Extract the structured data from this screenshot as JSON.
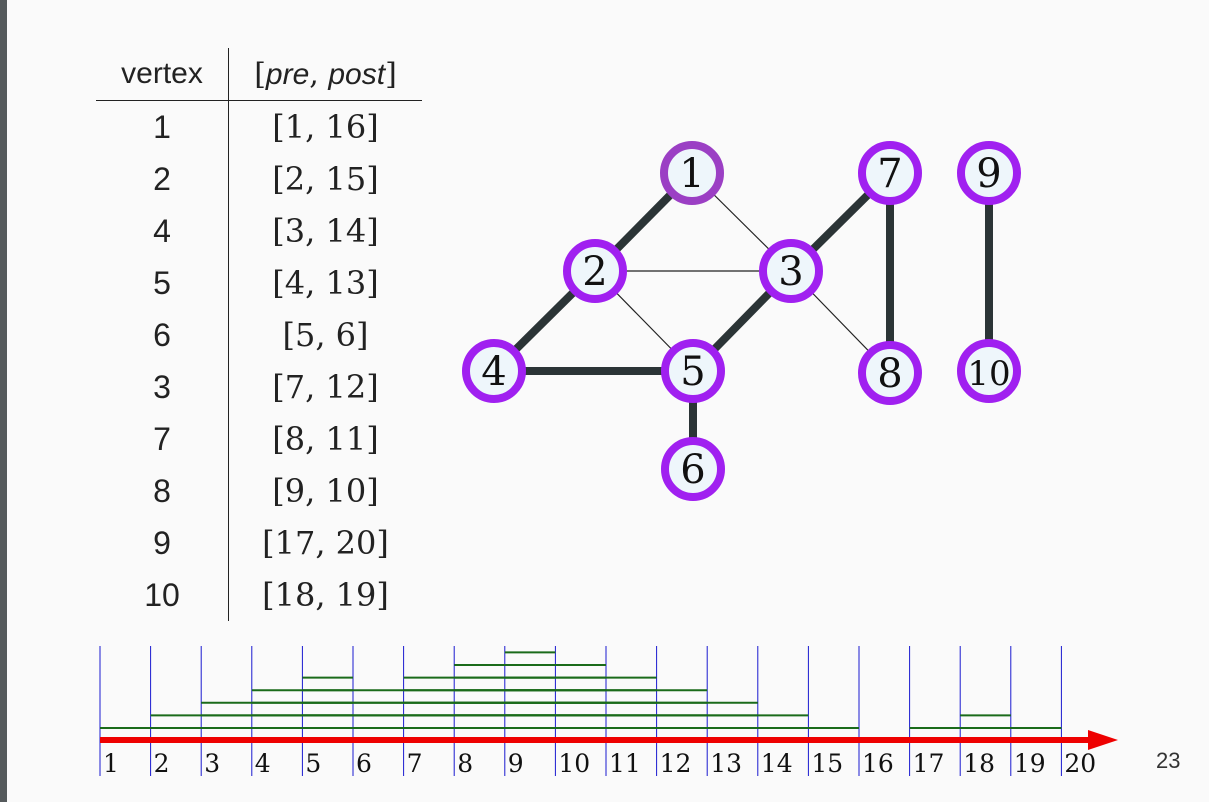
{
  "table": {
    "headers": {
      "vertex": "vertex",
      "interval_open": "[",
      "pre": "pre",
      "sep": ", ",
      "post": "post",
      "interval_close": "]"
    },
    "rows": [
      {
        "vertex": "1",
        "interval": "[1, 16]"
      },
      {
        "vertex": "2",
        "interval": "[2, 15]"
      },
      {
        "vertex": "4",
        "interval": "[3, 14]"
      },
      {
        "vertex": "5",
        "interval": "[4, 13]"
      },
      {
        "vertex": "6",
        "interval": "[5, 6]"
      },
      {
        "vertex": "3",
        "interval": "[7, 12]"
      },
      {
        "vertex": "7",
        "interval": "[8, 11]"
      },
      {
        "vertex": "8",
        "interval": "[9, 10]"
      },
      {
        "vertex": "9",
        "interval": "[17, 20]"
      },
      {
        "vertex": "10",
        "interval": "[18, 19]"
      }
    ]
  },
  "graph": {
    "nodes": [
      {
        "id": "1",
        "label": "1",
        "ring": "#9b3fc4"
      },
      {
        "id": "2",
        "label": "2",
        "ring": "#a020f0"
      },
      {
        "id": "3",
        "label": "3",
        "ring": "#a020f0"
      },
      {
        "id": "4",
        "label": "4",
        "ring": "#a020f0"
      },
      {
        "id": "5",
        "label": "5",
        "ring": "#a020f0"
      },
      {
        "id": "6",
        "label": "6",
        "ring": "#a020f0"
      },
      {
        "id": "7",
        "label": "7",
        "ring": "#a020f0"
      },
      {
        "id": "8",
        "label": "8",
        "ring": "#a020f0"
      },
      {
        "id": "9",
        "label": "9",
        "ring": "#a020f0"
      },
      {
        "id": "10",
        "label": "10",
        "ring": "#a020f0"
      }
    ],
    "edges": [
      {
        "from": "1",
        "to": "2",
        "tree": true
      },
      {
        "from": "1",
        "to": "3",
        "tree": false
      },
      {
        "from": "2",
        "to": "3",
        "tree": false
      },
      {
        "from": "2",
        "to": "4",
        "tree": true
      },
      {
        "from": "2",
        "to": "5",
        "tree": false
      },
      {
        "from": "4",
        "to": "5",
        "tree": true
      },
      {
        "from": "5",
        "to": "3",
        "tree": true
      },
      {
        "from": "5",
        "to": "6",
        "tree": true
      },
      {
        "from": "3",
        "to": "7",
        "tree": true
      },
      {
        "from": "3",
        "to": "8",
        "tree": false
      },
      {
        "from": "7",
        "to": "8",
        "tree": true
      },
      {
        "from": "9",
        "to": "10",
        "tree": true
      }
    ],
    "colors": {
      "tree_edge": "#2b3436",
      "other_edge": "#222222",
      "node_fill": "#eef6fb"
    }
  },
  "timeline": {
    "ticks": [
      "1",
      "2",
      "3",
      "4",
      "5",
      "6",
      "7",
      "8",
      "9",
      "10",
      "11",
      "12",
      "13",
      "14",
      "15",
      "16",
      "17",
      "18",
      "19",
      "20"
    ],
    "intervals": [
      [
        1,
        16
      ],
      [
        2,
        15
      ],
      [
        3,
        14
      ],
      [
        4,
        13
      ],
      [
        5,
        6
      ],
      [
        7,
        12
      ],
      [
        8,
        11
      ],
      [
        9,
        10
      ],
      [
        17,
        20
      ],
      [
        18,
        19
      ]
    ],
    "colors": {
      "axis": "#ee0000",
      "interval": "#1a6b1a",
      "tick_line": "#1a1ad0"
    }
  },
  "page_number": "23"
}
